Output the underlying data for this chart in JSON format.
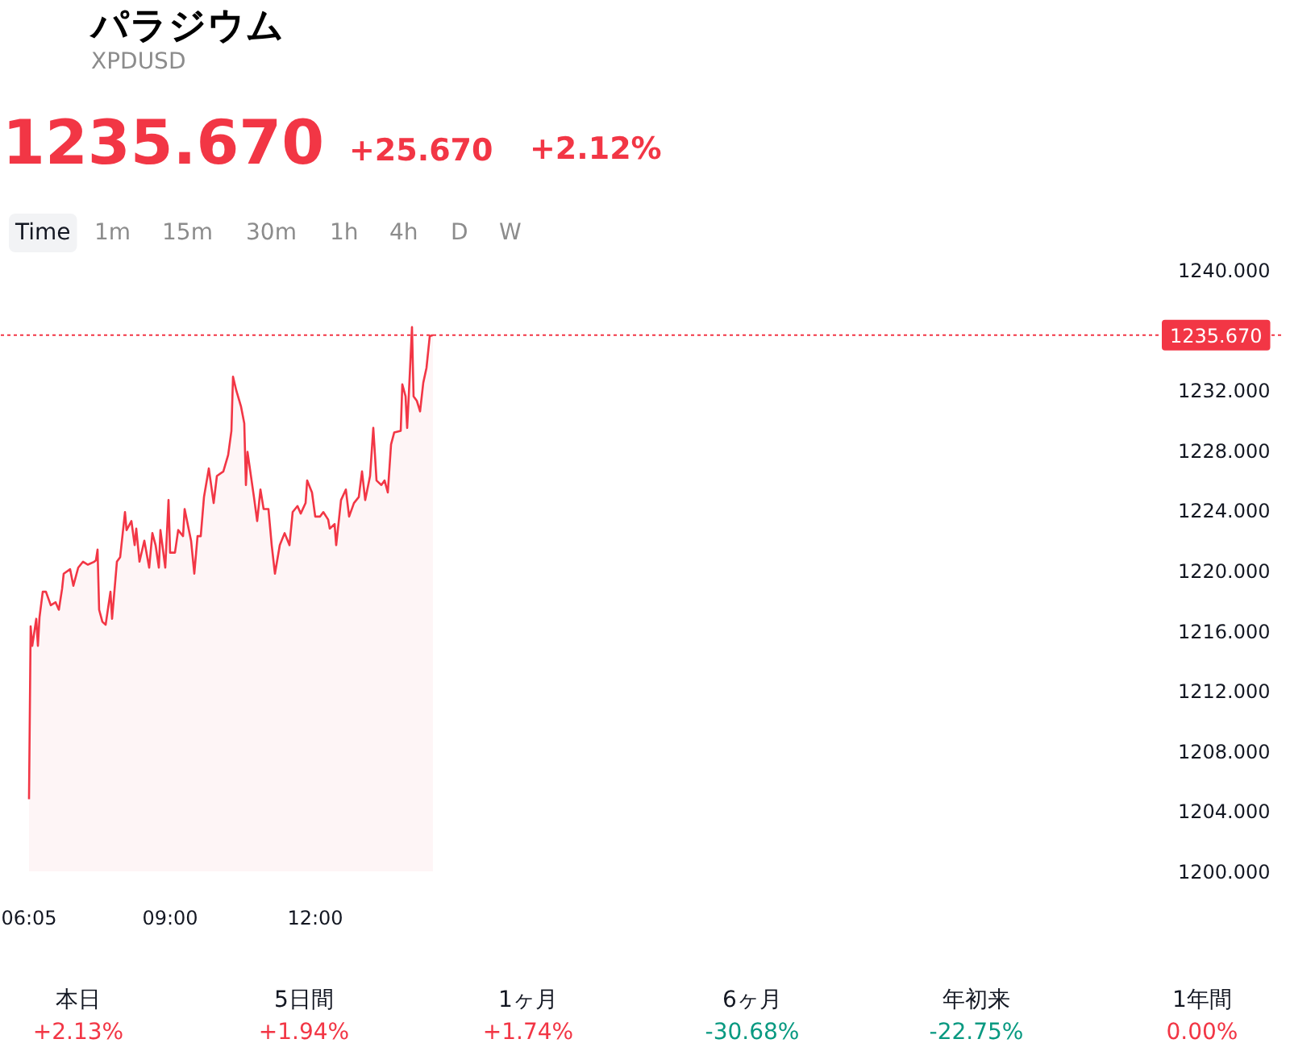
{
  "chart_data": {
    "type": "area",
    "title": "パラジウム",
    "subtitle": "XPDUSD",
    "annotations": [
      "1235.670",
      "+25.670",
      "+2.12%",
      "Time",
      "1m",
      "15m",
      "30m",
      "1h",
      "4h",
      "D",
      "W",
      "本日",
      "+2.13%",
      "5日間",
      "+1.94%",
      "1ヶ月",
      "+1.74%",
      "6ヶ月",
      "-30.68%",
      "年初来",
      "-22.75%",
      "1年間",
      "0.00%"
    ],
    "x": [
      6.083,
      6.117,
      6.15,
      6.233,
      6.267,
      6.3,
      6.367,
      6.433,
      6.533,
      6.633,
      6.7,
      6.767,
      6.8,
      6.933,
      7.0,
      7.1,
      7.2,
      7.3,
      7.433,
      7.467,
      7.5,
      7.533,
      7.6,
      7.667,
      7.767,
      7.8,
      7.9,
      7.967,
      8.067,
      8.1,
      8.2,
      8.267,
      8.3,
      8.367,
      8.467,
      8.567,
      8.633,
      8.7,
      8.767,
      8.8,
      8.9,
      8.967,
      9.0,
      9.1,
      9.167,
      9.267,
      9.3,
      9.433,
      9.5,
      9.567,
      9.633,
      9.7,
      9.8,
      9.9,
      9.967,
      10.1,
      10.2,
      10.267,
      10.3,
      10.367,
      10.467,
      10.533,
      10.567,
      10.6,
      10.733,
      10.8,
      10.867,
      10.933,
      11.033,
      11.1,
      11.167,
      11.267,
      11.367,
      11.467,
      11.533,
      11.633,
      11.7,
      11.8,
      11.833,
      11.933,
      12.0,
      12.1,
      12.167,
      12.267,
      12.3,
      12.4,
      12.433,
      12.533,
      12.633,
      12.7,
      12.8,
      12.9,
      12.967,
      13.033,
      13.133,
      13.2,
      13.267,
      13.367,
      13.433,
      13.5,
      13.567,
      13.633,
      13.767,
      13.8,
      13.867,
      13.9,
      13.933,
      14.0,
      14.033,
      14.1,
      14.167,
      14.233,
      14.3,
      14.367,
      14.433
    ],
    "series": [
      {
        "color": "#f23645",
        "values": [
          1204.8,
          1216.3,
          1215.0,
          1216.8,
          1215.0,
          1216.9,
          1218.6,
          1218.6,
          1217.7,
          1217.9,
          1217.4,
          1218.8,
          1219.8,
          1220.1,
          1219.0,
          1220.2,
          1220.6,
          1220.4,
          1220.6,
          1220.7,
          1221.4,
          1217.4,
          1216.6,
          1216.4,
          1218.6,
          1216.8,
          1220.6,
          1220.9,
          1223.9,
          1222.7,
          1223.3,
          1221.7,
          1222.8,
          1220.6,
          1222.0,
          1220.2,
          1222.5,
          1221.7,
          1220.2,
          1222.7,
          1220.2,
          1224.7,
          1221.2,
          1221.2,
          1222.7,
          1222.3,
          1224.1,
          1222.0,
          1219.8,
          1222.3,
          1222.3,
          1224.9,
          1226.8,
          1224.5,
          1226.3,
          1226.6,
          1227.7,
          1229.3,
          1232.9,
          1232.0,
          1230.9,
          1229.8,
          1225.7,
          1227.9,
          1224.9,
          1223.3,
          1225.4,
          1224.1,
          1224.1,
          1221.7,
          1219.8,
          1221.7,
          1222.5,
          1221.7,
          1223.9,
          1224.3,
          1223.8,
          1224.5,
          1226.0,
          1225.2,
          1223.6,
          1223.6,
          1223.9,
          1223.4,
          1222.8,
          1223.1,
          1221.7,
          1224.7,
          1225.4,
          1223.6,
          1224.5,
          1224.9,
          1226.6,
          1224.7,
          1226.3,
          1229.5,
          1226.0,
          1225.7,
          1226.0,
          1225.2,
          1228.4,
          1229.2,
          1229.3,
          1232.4,
          1231.6,
          1229.5,
          1231.6,
          1236.2,
          1231.6,
          1231.3,
          1230.6,
          1232.5,
          1233.5,
          1235.6,
          1235.67
        ]
      }
    ],
    "xlim": [
      5.5,
      32.0
    ],
    "xticks": [
      {
        "value": 6.083,
        "label": "06:05"
      },
      {
        "value": 9,
        "label": "09:00"
      },
      {
        "value": 12,
        "label": "12:00"
      }
    ],
    "ylim": [
      1200,
      1240
    ],
    "yticks": [
      {
        "value": 1200,
        "label": "1200.000"
      },
      {
        "value": 1204,
        "label": "1204.000"
      },
      {
        "value": 1208,
        "label": "1208.000"
      },
      {
        "value": 1212,
        "label": "1212.000"
      },
      {
        "value": 1216,
        "label": "1216.000"
      },
      {
        "value": 1220,
        "label": "1220.000"
      },
      {
        "value": 1224,
        "label": "1224.000"
      },
      {
        "value": 1228,
        "label": "1228.000"
      },
      {
        "value": 1232,
        "label": "1232.000"
      },
      {
        "value": 1240,
        "label": "1240.000"
      }
    ],
    "ref_lines": [
      {
        "axis": "y",
        "value": 1235.67,
        "label": "1235.670",
        "color": "#f23645",
        "line_style": "dotted"
      }
    ],
    "line_style": "solid"
  }
}
